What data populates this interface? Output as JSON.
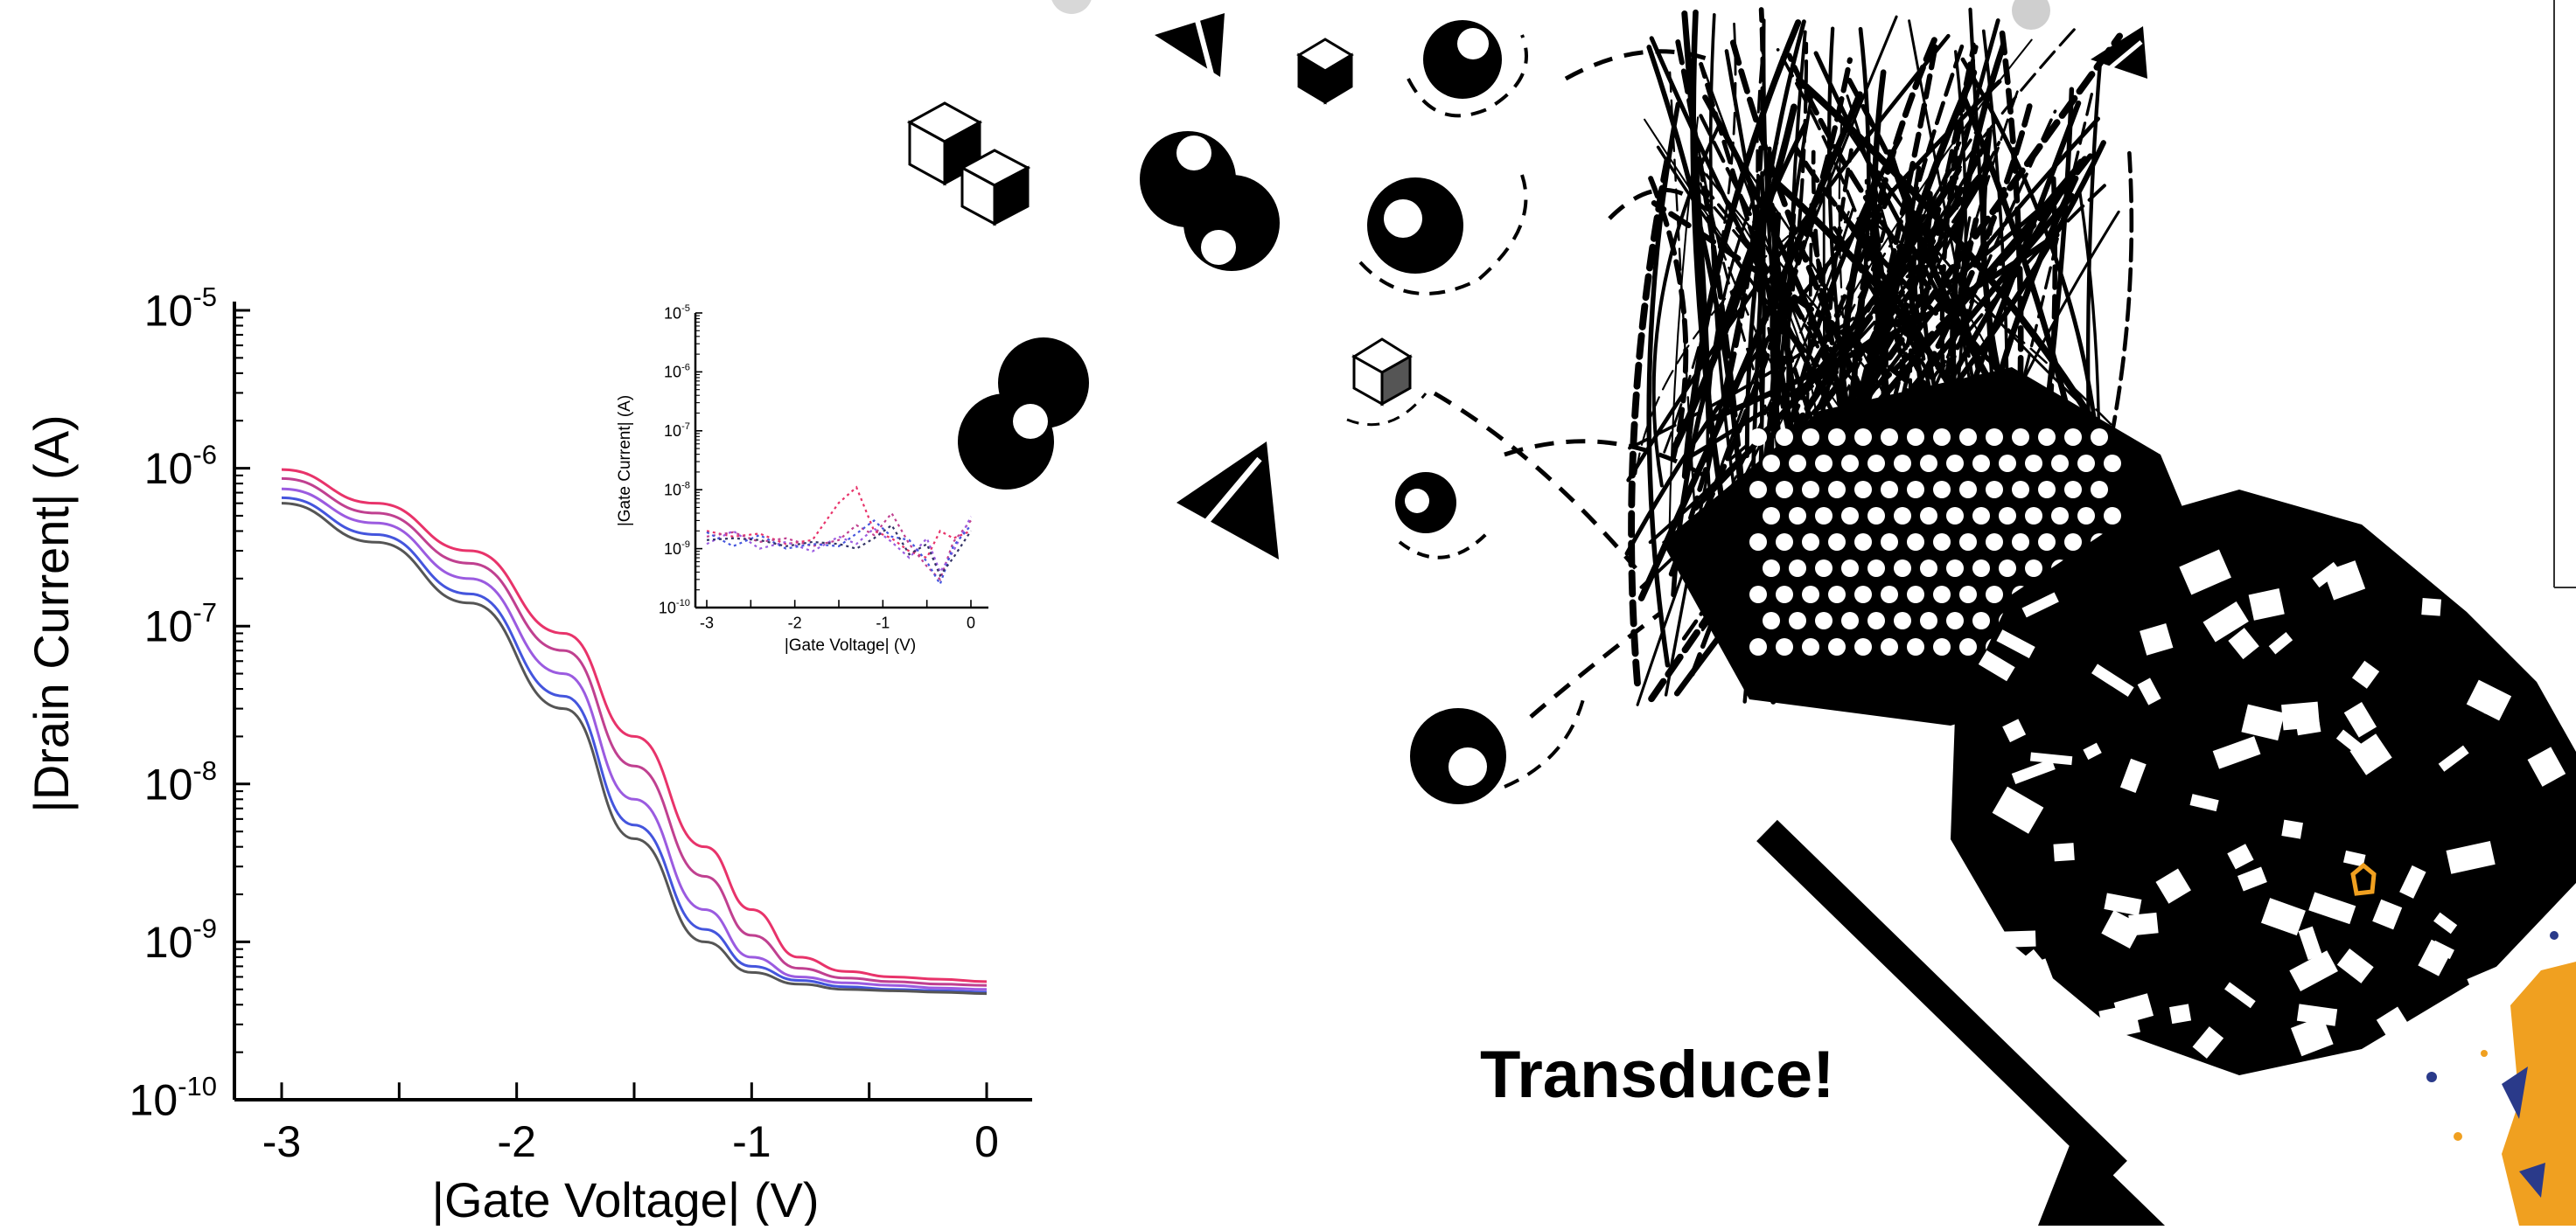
{
  "chart_data": [
    {
      "type": "line",
      "title": "",
      "xlabel": "|Gate Voltage| (V)",
      "ylabel": "|Drain Current| (A)",
      "y_scale": "log",
      "xlim": [
        -3,
        0
      ],
      "ylim_exponents": [
        -10,
        -5
      ],
      "x_tick_labels": [
        "-3",
        "-2",
        "-1",
        "0"
      ],
      "y_tick_labels": [
        {
          "base": "10",
          "exp": "-10"
        },
        {
          "base": "10",
          "exp": "-9"
        },
        {
          "base": "10",
          "exp": "-8"
        },
        {
          "base": "10",
          "exp": "-7"
        },
        {
          "base": "10",
          "exp": "-6"
        },
        {
          "base": "10",
          "exp": "-5"
        }
      ],
      "x": [
        -3.0,
        -2.6,
        -2.2,
        -1.8,
        -1.5,
        -1.2,
        -1.0,
        -0.8,
        -0.6,
        -0.4,
        -0.2,
        0.0
      ],
      "series": [
        {
          "color": "#e8336a",
          "values": [
            9.8e-07,
            6e-07,
            3e-07,
            9e-08,
            2e-08,
            4e-09,
            1.6e-09,
            8e-10,
            6.5e-10,
            6e-10,
            5.8e-10,
            5.6e-10
          ]
        },
        {
          "color": "#c04090",
          "values": [
            8.6e-07,
            5.2e-07,
            2.5e-07,
            7e-08,
            1.3e-08,
            2.6e-09,
            1.1e-09,
            6.8e-10,
            5.9e-10,
            5.6e-10,
            5.4e-10,
            5.3e-10
          ]
        },
        {
          "color": "#9b5be0",
          "values": [
            7.4e-07,
            4.5e-07,
            2e-07,
            5e-08,
            8e-09,
            1.6e-09,
            8e-10,
            6e-10,
            5.5e-10,
            5.3e-10,
            5.1e-10,
            5e-10
          ]
        },
        {
          "color": "#4455dd",
          "values": [
            6.5e-07,
            3.8e-07,
            1.6e-07,
            3.6e-08,
            5.5e-09,
            1.2e-09,
            7e-10,
            5.7e-10,
            5.2e-10,
            5e-10,
            4.9e-10,
            4.8e-10
          ]
        },
        {
          "color": "#555555",
          "values": [
            6e-07,
            3.4e-07,
            1.4e-07,
            3e-08,
            4.5e-09,
            1e-09,
            6.4e-10,
            5.4e-10,
            5e-10,
            4.9e-10,
            4.8e-10,
            4.7e-10
          ]
        }
      ]
    },
    {
      "type": "line",
      "title": "",
      "xlabel": "|Gate Voltage| (V)",
      "ylabel": "|Gate Current| (A)",
      "y_scale": "log",
      "line_style": "dotted",
      "xlim": [
        -3,
        0
      ],
      "ylim_exponents": [
        -10,
        -5
      ],
      "x_tick_labels": [
        "-3",
        "-2",
        "-1",
        "0"
      ],
      "y_tick_labels": [
        {
          "base": "10",
          "exp": "-10"
        },
        {
          "base": "10",
          "exp": "-9"
        },
        {
          "base": "10",
          "exp": "-8"
        },
        {
          "base": "10",
          "exp": "-7"
        },
        {
          "base": "10",
          "exp": "-6"
        },
        {
          "base": "10",
          "exp": "-5"
        }
      ],
      "x": [
        -3.0,
        -2.7,
        -2.4,
        -2.1,
        -1.8,
        -1.5,
        -1.3,
        -1.1,
        -0.9,
        -0.7,
        -0.5,
        -0.35,
        -0.2,
        0.0
      ],
      "series": [
        {
          "color": "#e8336a",
          "values": [
            2e-09,
            1.6e-09,
            1.8e-09,
            1.2e-09,
            1.4e-09,
            6e-09,
            1.1e-08,
            2e-09,
            1.5e-09,
            9e-10,
            7e-10,
            2e-09,
            1.5e-09,
            2e-09
          ]
        },
        {
          "color": "#c04090",
          "values": [
            1.6e-09,
            1.9e-09,
            1.3e-09,
            1.5e-09,
            1.1e-09,
            1.4e-09,
            2.5e-09,
            1.7e-09,
            4e-09,
            1.2e-09,
            5e-10,
            3e-10,
            1.3e-09,
            3e-09
          ]
        },
        {
          "color": "#9b5be0",
          "values": [
            1.2e-09,
            2e-09,
            1e-09,
            1.3e-09,
            9e-10,
            1.6e-09,
            1.2e-09,
            2.2e-09,
            1.3e-09,
            7e-10,
            1.5e-09,
            4e-10,
            9e-10,
            3.5e-09
          ]
        },
        {
          "color": "#4455dd",
          "values": [
            1.9e-09,
            1.1e-09,
            1.7e-09,
            1e-09,
            1.2e-09,
            1.1e-09,
            1.8e-09,
            3e-09,
            1.6e-09,
            1.4e-09,
            6e-10,
            2.5e-10,
            1.1e-09,
            2.5e-09
          ]
        },
        {
          "color": "#333366",
          "values": [
            1.4e-09,
            1.5e-09,
            1.4e-09,
            1.1e-09,
            1.3e-09,
            1.2e-09,
            1e-09,
            1.5e-09,
            2.5e-09,
            8e-10,
            1.2e-09,
            3.5e-10,
            7e-10,
            2e-09
          ]
        }
      ]
    }
  ],
  "illustration": {
    "caption": "Transduce!",
    "icons": [
      "cube-icon",
      "tetrahedron-icon",
      "particle-icon",
      "fibrous-mesh-icon",
      "crystal-aggregate-icon",
      "arrow-icon"
    ]
  },
  "colors": {
    "accent": "#f0a020",
    "ink": "#000000",
    "navy": "#2a3a8a"
  }
}
